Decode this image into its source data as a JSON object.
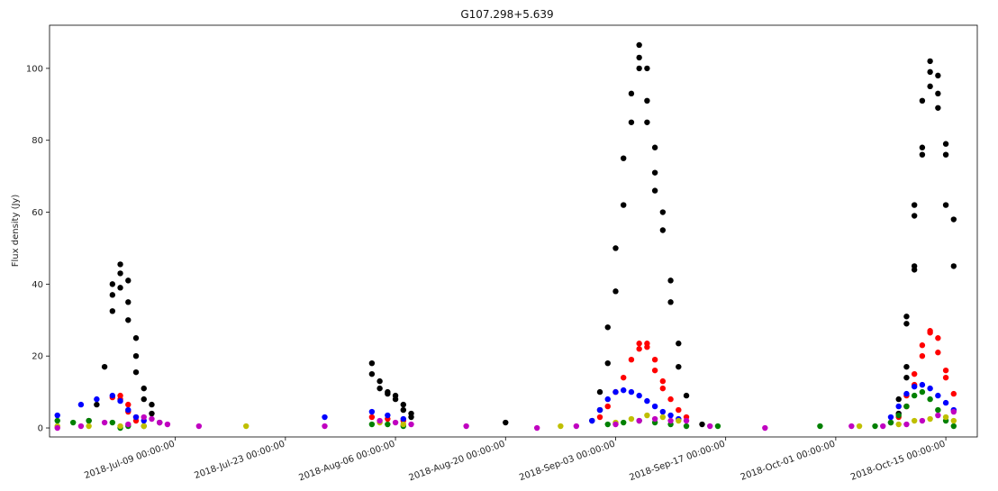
{
  "chart_data": {
    "type": "scatter",
    "title": "G107.298+5.639",
    "xlabel": "",
    "ylabel": "Flux density (Jy)",
    "xlim": [
      "2018-06-23",
      "2018-10-19"
    ],
    "ylim": [
      -2.5,
      112
    ],
    "grid": false,
    "legend": "none",
    "x_ticks": [
      "2018-Jul-09 00:00:00",
      "2018-Jul-23 00:00:00",
      "2018-Aug-06 00:00:00",
      "2018-Aug-20 00:00:00",
      "2018-Sep-03 00:00:00",
      "2018-Sep-17 00:00:00",
      "2018-Oct-01 00:00:00",
      "2018-Oct-15 00:00:00"
    ],
    "y_ticks": [
      "0",
      "20",
      "40",
      "60",
      "80",
      "100"
    ],
    "series": [
      {
        "color": "#000000",
        "points": [
          [
            "2018-06-28",
            2.0
          ],
          [
            "2018-06-29",
            6.5
          ],
          [
            "2018-06-30",
            17.0
          ],
          [
            "2018-07-01",
            32.5
          ],
          [
            "2018-07-01",
            37.0
          ],
          [
            "2018-07-01",
            40.0
          ],
          [
            "2018-07-02",
            43.0
          ],
          [
            "2018-07-02",
            45.5
          ],
          [
            "2018-07-02",
            39.0
          ],
          [
            "2018-07-03",
            41.0
          ],
          [
            "2018-07-03",
            35.0
          ],
          [
            "2018-07-03",
            30.0
          ],
          [
            "2018-07-04",
            25.0
          ],
          [
            "2018-07-04",
            20.0
          ],
          [
            "2018-07-04",
            15.5
          ],
          [
            "2018-07-05",
            11.0
          ],
          [
            "2018-07-05",
            8.0
          ],
          [
            "2018-07-06",
            6.5
          ],
          [
            "2018-07-06",
            4.0
          ],
          [
            "2018-07-07",
            1.5
          ],
          [
            "2018-08-03",
            18.0
          ],
          [
            "2018-08-03",
            15.0
          ],
          [
            "2018-08-04",
            13.0
          ],
          [
            "2018-08-04",
            11.0
          ],
          [
            "2018-08-05",
            10.0
          ],
          [
            "2018-08-05",
            9.5
          ],
          [
            "2018-08-06",
            9.0
          ],
          [
            "2018-08-06",
            8.0
          ],
          [
            "2018-08-07",
            6.5
          ],
          [
            "2018-08-07",
            5.0
          ],
          [
            "2018-08-08",
            4.0
          ],
          [
            "2018-08-08",
            3.0
          ],
          [
            "2018-08-20",
            1.5
          ],
          [
            "2018-08-31",
            2.0
          ],
          [
            "2018-09-01",
            5.0
          ],
          [
            "2018-09-01",
            10.0
          ],
          [
            "2018-09-02",
            18.0
          ],
          [
            "2018-09-02",
            28.0
          ],
          [
            "2018-09-03",
            38.0
          ],
          [
            "2018-09-03",
            50.0
          ],
          [
            "2018-09-04",
            62.0
          ],
          [
            "2018-09-04",
            75.0
          ],
          [
            "2018-09-05",
            85.0
          ],
          [
            "2018-09-05",
            93.0
          ],
          [
            "2018-09-06",
            100.0
          ],
          [
            "2018-09-06",
            106.5
          ],
          [
            "2018-09-06",
            103.0
          ],
          [
            "2018-09-07",
            100.0
          ],
          [
            "2018-09-07",
            91.0
          ],
          [
            "2018-09-07",
            85.0
          ],
          [
            "2018-09-08",
            78.0
          ],
          [
            "2018-09-08",
            71.0
          ],
          [
            "2018-09-08",
            66.0
          ],
          [
            "2018-09-09",
            60.0
          ],
          [
            "2018-09-09",
            55.0
          ],
          [
            "2018-09-10",
            41.0
          ],
          [
            "2018-09-10",
            35.0
          ],
          [
            "2018-09-11",
            23.5
          ],
          [
            "2018-09-11",
            17.0
          ],
          [
            "2018-09-12",
            9.0
          ],
          [
            "2018-09-14",
            1.0
          ],
          [
            "2018-10-08",
            1.5
          ],
          [
            "2018-10-09",
            4.0
          ],
          [
            "2018-10-09",
            8.0
          ],
          [
            "2018-10-10",
            14.0
          ],
          [
            "2018-10-10",
            17.0
          ],
          [
            "2018-10-10",
            29.0
          ],
          [
            "2018-10-10",
            31.0
          ],
          [
            "2018-10-11",
            44.0
          ],
          [
            "2018-10-11",
            45.0
          ],
          [
            "2018-10-11",
            59.0
          ],
          [
            "2018-10-11",
            62.0
          ],
          [
            "2018-10-12",
            76.0
          ],
          [
            "2018-10-12",
            78.0
          ],
          [
            "2018-10-12",
            91.0
          ],
          [
            "2018-10-13",
            95.0
          ],
          [
            "2018-10-13",
            99.0
          ],
          [
            "2018-10-13",
            102.0
          ],
          [
            "2018-10-14",
            98.0
          ],
          [
            "2018-10-14",
            93.0
          ],
          [
            "2018-10-14",
            89.0
          ],
          [
            "2018-10-15",
            79.0
          ],
          [
            "2018-10-15",
            76.0
          ],
          [
            "2018-10-15",
            62.0
          ],
          [
            "2018-10-16",
            58.0
          ],
          [
            "2018-10-16",
            45.0
          ]
        ]
      },
      {
        "color": "#ff0000",
        "points": [
          [
            "2018-07-01",
            8.5
          ],
          [
            "2018-07-02",
            9.0
          ],
          [
            "2018-07-02",
            8.0
          ],
          [
            "2018-07-03",
            6.5
          ],
          [
            "2018-07-03",
            4.5
          ],
          [
            "2018-07-04",
            3.0
          ],
          [
            "2018-07-04",
            2.0
          ],
          [
            "2018-08-03",
            3.0
          ],
          [
            "2018-08-05",
            2.5
          ],
          [
            "2018-08-07",
            2.0
          ],
          [
            "2018-09-01",
            3.0
          ],
          [
            "2018-09-02",
            6.0
          ],
          [
            "2018-09-03",
            10.0
          ],
          [
            "2018-09-04",
            14.0
          ],
          [
            "2018-09-05",
            19.0
          ],
          [
            "2018-09-06",
            22.0
          ],
          [
            "2018-09-06",
            23.5
          ],
          [
            "2018-09-07",
            23.5
          ],
          [
            "2018-09-07",
            22.5
          ],
          [
            "2018-09-08",
            19.0
          ],
          [
            "2018-09-08",
            16.0
          ],
          [
            "2018-09-09",
            13.0
          ],
          [
            "2018-09-09",
            11.0
          ],
          [
            "2018-09-10",
            8.0
          ],
          [
            "2018-09-11",
            5.0
          ],
          [
            "2018-09-12",
            3.0
          ],
          [
            "2018-10-09",
            3.0
          ],
          [
            "2018-10-10",
            6.0
          ],
          [
            "2018-10-10",
            9.0
          ],
          [
            "2018-10-11",
            12.0
          ],
          [
            "2018-10-11",
            15.0
          ],
          [
            "2018-10-12",
            20.0
          ],
          [
            "2018-10-12",
            23.0
          ],
          [
            "2018-10-13",
            26.5
          ],
          [
            "2018-10-13",
            27.0
          ],
          [
            "2018-10-14",
            25.0
          ],
          [
            "2018-10-14",
            21.0
          ],
          [
            "2018-10-15",
            16.0
          ],
          [
            "2018-10-15",
            14.0
          ],
          [
            "2018-10-16",
            9.5
          ]
        ]
      },
      {
        "color": "#0000ff",
        "points": [
          [
            "2018-06-24",
            3.5
          ],
          [
            "2018-06-27",
            6.5
          ],
          [
            "2018-06-29",
            8.0
          ],
          [
            "2018-07-01",
            9.0
          ],
          [
            "2018-07-02",
            7.5
          ],
          [
            "2018-07-03",
            5.0
          ],
          [
            "2018-07-04",
            3.0
          ],
          [
            "2018-07-05",
            2.0
          ],
          [
            "2018-07-28",
            3.0
          ],
          [
            "2018-08-03",
            4.5
          ],
          [
            "2018-08-05",
            3.5
          ],
          [
            "2018-08-07",
            2.5
          ],
          [
            "2018-08-31",
            2.0
          ],
          [
            "2018-09-01",
            5.0
          ],
          [
            "2018-09-02",
            8.0
          ],
          [
            "2018-09-03",
            10.0
          ],
          [
            "2018-09-04",
            10.5
          ],
          [
            "2018-09-05",
            10.0
          ],
          [
            "2018-09-06",
            9.0
          ],
          [
            "2018-09-07",
            7.5
          ],
          [
            "2018-09-08",
            6.0
          ],
          [
            "2018-09-09",
            4.5
          ],
          [
            "2018-09-10",
            3.5
          ],
          [
            "2018-09-11",
            2.5
          ],
          [
            "2018-10-08",
            3.0
          ],
          [
            "2018-10-09",
            6.0
          ],
          [
            "2018-10-10",
            9.5
          ],
          [
            "2018-10-11",
            11.5
          ],
          [
            "2018-10-12",
            12.0
          ],
          [
            "2018-10-13",
            11.0
          ],
          [
            "2018-10-14",
            9.0
          ],
          [
            "2018-10-15",
            7.0
          ],
          [
            "2018-10-16",
            5.0
          ]
        ]
      },
      {
        "color": "#008000",
        "points": [
          [
            "2018-06-24",
            2.0
          ],
          [
            "2018-06-26",
            1.5
          ],
          [
            "2018-06-28",
            2.0
          ],
          [
            "2018-07-01",
            1.5
          ],
          [
            "2018-07-02",
            0.0
          ],
          [
            "2018-07-03",
            0.5
          ],
          [
            "2018-07-05",
            0.5
          ],
          [
            "2018-08-03",
            1.0
          ],
          [
            "2018-08-05",
            1.0
          ],
          [
            "2018-08-07",
            0.5
          ],
          [
            "2018-09-02",
            1.0
          ],
          [
            "2018-09-04",
            1.5
          ],
          [
            "2018-09-06",
            2.0
          ],
          [
            "2018-09-08",
            1.5
          ],
          [
            "2018-09-10",
            1.0
          ],
          [
            "2018-09-12",
            0.5
          ],
          [
            "2018-09-16",
            0.5
          ],
          [
            "2018-09-29",
            0.5
          ],
          [
            "2018-10-06",
            0.5
          ],
          [
            "2018-10-08",
            1.5
          ],
          [
            "2018-10-09",
            3.5
          ],
          [
            "2018-10-10",
            6.0
          ],
          [
            "2018-10-11",
            9.0
          ],
          [
            "2018-10-12",
            10.0
          ],
          [
            "2018-10-13",
            8.0
          ],
          [
            "2018-10-14",
            5.0
          ],
          [
            "2018-10-15",
            2.0
          ],
          [
            "2018-10-16",
            0.5
          ]
        ]
      },
      {
        "color": "#bfbf00",
        "points": [
          [
            "2018-06-24",
            0.5
          ],
          [
            "2018-06-28",
            0.5
          ],
          [
            "2018-07-02",
            0.5
          ],
          [
            "2018-07-05",
            0.5
          ],
          [
            "2018-07-18",
            0.5
          ],
          [
            "2018-08-04",
            1.5
          ],
          [
            "2018-08-07",
            1.0
          ],
          [
            "2018-08-27",
            0.5
          ],
          [
            "2018-09-03",
            1.5
          ],
          [
            "2018-09-05",
            2.5
          ],
          [
            "2018-09-07",
            3.5
          ],
          [
            "2018-09-09",
            3.0
          ],
          [
            "2018-09-11",
            2.0
          ],
          [
            "2018-10-04",
            0.5
          ],
          [
            "2018-10-09",
            1.0
          ],
          [
            "2018-10-11",
            2.0
          ],
          [
            "2018-10-13",
            2.5
          ],
          [
            "2018-10-15",
            3.0
          ],
          [
            "2018-10-16",
            2.0
          ]
        ]
      },
      {
        "color": "#c000c0",
        "points": [
          [
            "2018-06-24",
            0.0
          ],
          [
            "2018-06-27",
            0.5
          ],
          [
            "2018-06-30",
            1.5
          ],
          [
            "2018-07-03",
            1.0
          ],
          [
            "2018-07-05",
            3.0
          ],
          [
            "2018-07-06",
            2.5
          ],
          [
            "2018-07-07",
            1.5
          ],
          [
            "2018-07-08",
            1.0
          ],
          [
            "2018-07-12",
            0.5
          ],
          [
            "2018-07-28",
            0.5
          ],
          [
            "2018-08-04",
            2.0
          ],
          [
            "2018-08-06",
            1.5
          ],
          [
            "2018-08-08",
            1.0
          ],
          [
            "2018-08-15",
            0.5
          ],
          [
            "2018-08-24",
            0.0
          ],
          [
            "2018-08-29",
            0.5
          ],
          [
            "2018-09-03",
            1.0
          ],
          [
            "2018-09-06",
            2.0
          ],
          [
            "2018-09-08",
            2.5
          ],
          [
            "2018-09-10",
            2.0
          ],
          [
            "2018-09-12",
            2.0
          ],
          [
            "2018-09-15",
            0.5
          ],
          [
            "2018-09-22",
            0.0
          ],
          [
            "2018-10-03",
            0.5
          ],
          [
            "2018-10-07",
            0.5
          ],
          [
            "2018-10-10",
            1.0
          ],
          [
            "2018-10-12",
            2.0
          ],
          [
            "2018-10-14",
            3.5
          ],
          [
            "2018-10-16",
            4.5
          ]
        ]
      }
    ]
  }
}
